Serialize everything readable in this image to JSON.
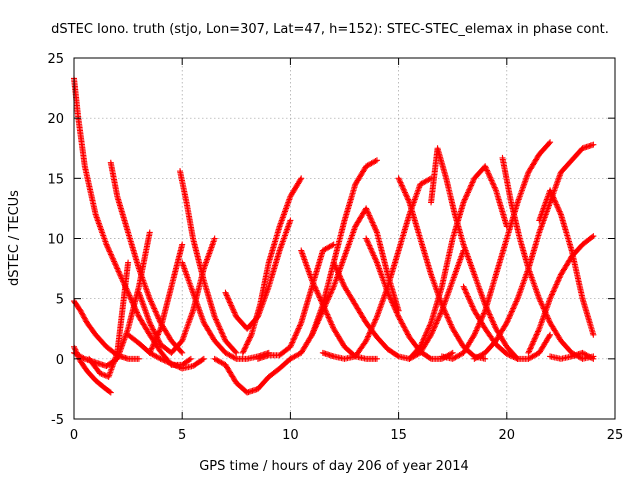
{
  "chart_data": {
    "type": "scatter",
    "title": "dSTEC Iono. truth (stjo, Lon=307, Lat=47, h=152): STEC-STEC_elemax in phase cont.",
    "xlabel": "GPS time / hours of day 206 of year 2014",
    "ylabel": "dSTEC  / TECUs",
    "xlim": [
      0,
      25
    ],
    "ylim": [
      -5,
      25
    ],
    "xticks": [
      0,
      5,
      10,
      15,
      20,
      25
    ],
    "yticks": [
      -5,
      0,
      5,
      10,
      15,
      20,
      25
    ],
    "xtick_labels": [
      "0",
      "5",
      "10",
      "15",
      "20",
      "25"
    ],
    "ytick_labels": [
      "-5",
      "0",
      "5",
      "10",
      "15",
      "20",
      "25"
    ],
    "grid": true,
    "marker": "plus",
    "color": "#ff0000",
    "series": [
      {
        "x": [
          0.0,
          0.2,
          0.5,
          1.0,
          1.5,
          2.0,
          2.5,
          3.0,
          3.5,
          4.0,
          4.5,
          5.0,
          5.4
        ],
        "y": [
          23.3,
          20.0,
          16.0,
          12.0,
          9.5,
          7.5,
          5.5,
          3.5,
          2.0,
          0.6,
          -0.5,
          -0.5,
          0.0
        ]
      },
      {
        "x": [
          0.0,
          0.3,
          0.6,
          1.0,
          1.4,
          1.7
        ],
        "y": [
          1.0,
          -0.2,
          -1.0,
          -1.8,
          -2.4,
          -2.8
        ]
      },
      {
        "x": [
          0.0,
          0.3,
          0.6,
          1.0,
          1.5,
          2.0,
          2.5,
          3.0
        ],
        "y": [
          4.8,
          4.0,
          3.0,
          2.0,
          1.0,
          0.3,
          0.0,
          0.0
        ]
      },
      {
        "x": [
          0.0,
          0.5,
          1.0,
          1.5,
          2.0,
          2.5,
          3.0,
          3.5
        ],
        "y": [
          0.5,
          0.0,
          -0.3,
          -0.6,
          0.0,
          2.5,
          6.0,
          10.5
        ]
      },
      {
        "x": [
          1.7,
          2.0,
          2.5,
          3.0,
          3.5,
          4.0,
          4.5,
          5.0
        ],
        "y": [
          16.3,
          13.5,
          10.5,
          7.5,
          5.0,
          3.0,
          1.5,
          0.5
        ]
      },
      {
        "x": [
          0.7,
          1.2,
          1.6,
          2.0,
          2.5
        ],
        "y": [
          0.0,
          -1.2,
          -1.5,
          0.5,
          8.0
        ]
      },
      {
        "x": [
          2.5,
          3.0,
          3.5,
          4.0,
          4.5,
          5.0,
          5.5,
          6.0
        ],
        "y": [
          2.0,
          1.3,
          0.5,
          0.0,
          -0.4,
          -0.8,
          -0.6,
          0.0
        ]
      },
      {
        "x": [
          3.0,
          3.5,
          4.0,
          4.5,
          5.0,
          5.5,
          6.0,
          6.5
        ],
        "y": [
          5.5,
          3.0,
          1.2,
          0.5,
          1.5,
          4.0,
          7.5,
          10.0
        ]
      },
      {
        "x": [
          4.9,
          5.2,
          5.5,
          6.0,
          6.5,
          7.0,
          7.5
        ],
        "y": [
          15.6,
          13.0,
          10.0,
          6.5,
          3.5,
          1.5,
          0.5
        ]
      },
      {
        "x": [
          3.5,
          4.0,
          4.5,
          5.0
        ],
        "y": [
          0.5,
          2.5,
          6.0,
          9.5
        ]
      },
      {
        "x": [
          5.0,
          5.5,
          6.0,
          6.5,
          7.0,
          7.5,
          8.0,
          8.5,
          9.0
        ],
        "y": [
          8.0,
          5.5,
          3.0,
          1.5,
          0.5,
          0.0,
          0.0,
          0.2,
          0.5
        ]
      },
      {
        "x": [
          6.5,
          7.0,
          7.5,
          8.0,
          8.5,
          9.0,
          9.5,
          10.0
        ],
        "y": [
          0.0,
          -0.5,
          -2.0,
          -2.8,
          -2.5,
          -1.5,
          -0.8,
          0.0
        ]
      },
      {
        "x": [
          7.0,
          7.5,
          8.0,
          8.5,
          9.0,
          9.5,
          10.0
        ],
        "y": [
          5.5,
          3.5,
          2.5,
          3.5,
          6.0,
          9.0,
          11.5
        ]
      },
      {
        "x": [
          7.8,
          8.2,
          8.6,
          9.0,
          9.5,
          10.0,
          10.5
        ],
        "y": [
          0.5,
          2.0,
          4.5,
          8.0,
          11.0,
          13.5,
          15.0
        ]
      },
      {
        "x": [
          8.5,
          9.0,
          9.5,
          10.0,
          10.5,
          11.0,
          11.5,
          12.0
        ],
        "y": [
          0.0,
          0.3,
          0.3,
          1.0,
          3.0,
          6.0,
          9.0,
          9.5
        ]
      },
      {
        "x": [
          10.0,
          10.5,
          11.0,
          11.5,
          12.0,
          12.5,
          13.0,
          13.5,
          14.0
        ],
        "y": [
          0.0,
          0.5,
          2.0,
          4.5,
          8.0,
          11.5,
          14.5,
          16.0,
          16.5
        ]
      },
      {
        "x": [
          10.5,
          11.0,
          11.5,
          12.0,
          12.5,
          13.0,
          13.5,
          14.0
        ],
        "y": [
          9.0,
          6.5,
          4.5,
          2.5,
          1.0,
          0.2,
          0.0,
          0.0
        ]
      },
      {
        "x": [
          11.0,
          11.5,
          12.0,
          12.5,
          13.0,
          13.5,
          14.0,
          14.5,
          15.0
        ],
        "y": [
          2.0,
          4.0,
          6.0,
          8.5,
          11.0,
          12.5,
          10.5,
          7.0,
          4.0
        ]
      },
      {
        "x": [
          11.5,
          12.0,
          12.5,
          13.0,
          13.5,
          14.0,
          14.5,
          15.0,
          15.5,
          16.0,
          16.5
        ],
        "y": [
          0.5,
          0.2,
          0.0,
          0.2,
          1.5,
          3.5,
          6.0,
          9.0,
          12.0,
          14.5,
          15.0
        ]
      },
      {
        "x": [
          12.0,
          12.5,
          13.0,
          13.5,
          14.0,
          14.5,
          15.0,
          15.5,
          16.0,
          16.5,
          17.0,
          17.5,
          18.0
        ],
        "y": [
          8.0,
          6.0,
          4.5,
          3.0,
          1.8,
          0.8,
          0.2,
          0.0,
          0.5,
          2.0,
          4.0,
          6.5,
          9.0
        ]
      },
      {
        "x": [
          13.5,
          14.0,
          14.5,
          15.0,
          15.5,
          16.0,
          16.5,
          17.0,
          17.5
        ],
        "y": [
          10.0,
          8.0,
          5.5,
          3.5,
          1.8,
          0.6,
          0.0,
          0.0,
          0.5
        ]
      },
      {
        "x": [
          15.0,
          15.5,
          16.0,
          16.5,
          17.0,
          17.5,
          18.0,
          18.5,
          19.0
        ],
        "y": [
          15.0,
          13.0,
          10.0,
          7.0,
          4.5,
          2.5,
          1.0,
          0.2,
          0.0
        ]
      },
      {
        "x": [
          15.5,
          16.0,
          16.5,
          17.0,
          17.5,
          18.0,
          18.5,
          19.0,
          19.5,
          20.0
        ],
        "y": [
          0.0,
          1.0,
          3.0,
          6.0,
          10.0,
          13.0,
          15.0,
          16.0,
          14.0,
          11.0
        ]
      },
      {
        "x": [
          16.5,
          16.8,
          17.2,
          17.6,
          18.0,
          18.5,
          19.0,
          19.5,
          20.0,
          20.5
        ],
        "y": [
          13.0,
          17.5,
          15.0,
          12.0,
          9.5,
          7.0,
          4.5,
          2.5,
          1.0,
          0.0
        ]
      },
      {
        "x": [
          17.0,
          17.5,
          18.0,
          18.5,
          19.0,
          19.5,
          20.0,
          20.5,
          21.0,
          21.5,
          22.0
        ],
        "y": [
          0.2,
          0.0,
          0.5,
          2.0,
          4.0,
          7.0,
          10.0,
          13.0,
          15.5,
          17.0,
          18.0
        ]
      },
      {
        "x": [
          18.0,
          18.5,
          19.0,
          19.5,
          20.0,
          20.5,
          21.0,
          21.5,
          22.0
        ],
        "y": [
          6.0,
          4.0,
          2.5,
          1.2,
          0.4,
          0.0,
          0.0,
          0.5,
          2.0
        ]
      },
      {
        "x": [
          18.5,
          19.0,
          19.5,
          20.0,
          20.5,
          21.0,
          21.5,
          22.0,
          22.5,
          23.0,
          23.5,
          24.0
        ],
        "y": [
          0.0,
          0.5,
          1.5,
          3.0,
          5.0,
          7.5,
          10.5,
          13.0,
          15.5,
          16.5,
          17.5,
          17.8
        ]
      },
      {
        "x": [
          19.8,
          20.2,
          20.6,
          21.0,
          21.5,
          22.0,
          22.5,
          23.0,
          23.5,
          24.0
        ],
        "y": [
          16.7,
          13.0,
          10.0,
          7.5,
          5.0,
          3.0,
          1.5,
          0.5,
          0.0,
          0.2
        ]
      },
      {
        "x": [
          21.0,
          21.5,
          22.0,
          22.5,
          23.0,
          23.5,
          24.0
        ],
        "y": [
          0.5,
          2.5,
          5.0,
          7.0,
          8.5,
          9.5,
          10.2
        ]
      },
      {
        "x": [
          21.5,
          22.0,
          22.5,
          23.0,
          23.5,
          24.0
        ],
        "y": [
          11.5,
          14.0,
          12.0,
          9.0,
          5.0,
          2.0
        ]
      },
      {
        "x": [
          22.0,
          22.5,
          23.0,
          23.5,
          24.0
        ],
        "y": [
          0.2,
          0.0,
          0.2,
          0.5,
          0.0
        ]
      }
    ]
  }
}
